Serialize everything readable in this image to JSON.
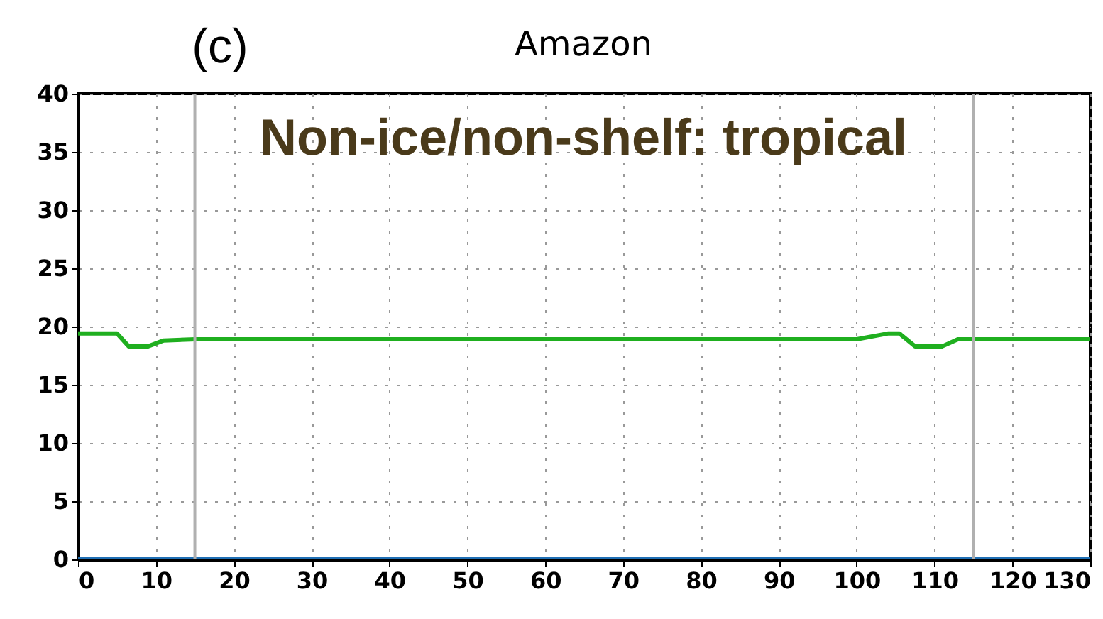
{
  "chart_data": {
    "type": "line",
    "title": "Amazon",
    "annotations": [
      "(c)",
      "Non-ice/non-shelf: tropical"
    ],
    "series": [
      {
        "color": "#1faf1f",
        "x": [
          0,
          5,
          6.5,
          9,
          11,
          15,
          100,
          104,
          105.5,
          107.5,
          111,
          113,
          130
        ],
        "values": [
          19.4,
          19.4,
          18.3,
          18.3,
          18.8,
          18.9,
          18.9,
          19.4,
          19.4,
          18.3,
          18.3,
          18.9,
          18.9
        ]
      },
      {
        "color": "#1f6fb4",
        "x": [
          0,
          130
        ],
        "values": [
          0,
          0
        ]
      }
    ],
    "xlim": [
      0,
      130
    ],
    "xticks": [
      0,
      10,
      20,
      30,
      40,
      50,
      60,
      70,
      80,
      90,
      100,
      110,
      120,
      130
    ],
    "ylim": [
      0,
      40
    ],
    "yticks": [
      0,
      5,
      10,
      15,
      20,
      25,
      30,
      35,
      40
    ],
    "grid": true,
    "line_style": "solid",
    "ref_lines": [
      {
        "axis": "x",
        "value": 15,
        "color": "#b0b0b0"
      },
      {
        "axis": "x",
        "value": 115,
        "color": "#b0b0b0"
      }
    ]
  }
}
